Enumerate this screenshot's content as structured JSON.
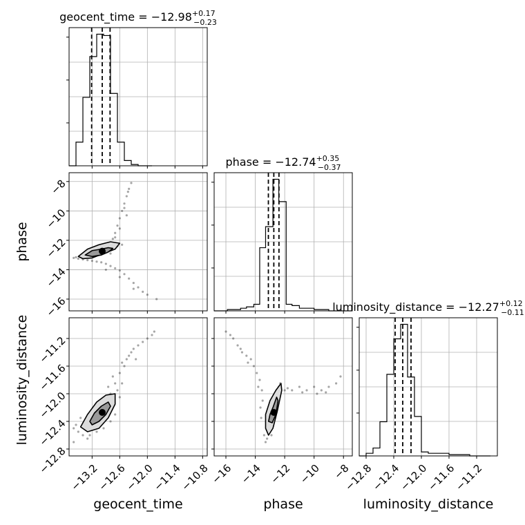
{
  "chart_data": {
    "type": "scatter",
    "layout": "corner-plot",
    "parameters": [
      "geocent_time",
      "phase",
      "luminosity_distance"
    ],
    "grid": true,
    "titles": {
      "geocent_time": {
        "prefix": "geocent_time = ",
        "median": "−12.98",
        "plus": "+0.17",
        "minus": "−0.23"
      },
      "phase": {
        "prefix": "phase = ",
        "median": "−12.74",
        "plus": "+0.35",
        "minus": "−0.37"
      },
      "luminosity_distance": {
        "prefix": "luminosity_distance = ",
        "median": "−12.27",
        "plus": "+0.12",
        "minus": "−0.11"
      }
    },
    "axes": {
      "geocent_time": {
        "label": "geocent_time",
        "range": [
          -13.7,
          -10.7
        ],
        "ticks": [
          -13.2,
          -12.6,
          -12.0,
          -11.4,
          -10.8
        ],
        "tick_labels": [
          "−13.2",
          "−12.6",
          "−12.0",
          "−11.4",
          "−10.8"
        ]
      },
      "phase": {
        "label": "phase",
        "range": [
          -16.8,
          -7.4
        ],
        "ticks": [
          -16,
          -14,
          -12,
          -10,
          -8
        ],
        "tick_labels": [
          "−16",
          "−14",
          "−12",
          "−10",
          "−8"
        ]
      },
      "luminosity_distance": {
        "label": "luminosity_distance",
        "range": [
          -12.9,
          -10.9
        ],
        "ticks": [
          -12.8,
          -12.4,
          -12.0,
          -11.6,
          -11.2
        ],
        "tick_labels": [
          "−12.8",
          "−12.4",
          "−12.0",
          "−11.6",
          "−11.2"
        ]
      }
    },
    "histograms": {
      "geocent_time": {
        "bin_edges": [
          -13.7,
          -13.55,
          -13.4,
          -13.25,
          -13.1,
          -12.95,
          -12.8,
          -12.65,
          -12.5,
          -12.35,
          -12.2,
          -12.05,
          -11.9
        ],
        "counts": [
          0,
          0.18,
          0.52,
          0.83,
          1.0,
          0.99,
          0.55,
          0.18,
          0.04,
          0.01,
          0,
          0
        ],
        "quantiles": [
          -13.21,
          -12.98,
          -12.81
        ]
      },
      "phase": {
        "bin_edges": [
          -16.8,
          -15.9,
          -15.0,
          -14.6,
          -14.1,
          -13.7,
          -13.3,
          -12.8,
          -12.4,
          -11.9,
          -11.5,
          -11.0,
          -10.0,
          -9.0,
          -8.0,
          -7.4
        ],
        "counts": [
          0,
          0.01,
          0.02,
          0.03,
          0.05,
          0.48,
          0.64,
          1.0,
          0.83,
          0.05,
          0.04,
          0.02,
          0.01,
          0,
          0
        ],
        "quantiles": [
          -13.11,
          -12.74,
          -12.39
        ]
      },
      "luminosity_distance": {
        "bin_edges": [
          -12.9,
          -12.8,
          -12.7,
          -12.6,
          -12.5,
          -12.4,
          -12.3,
          -12.2,
          -12.1,
          -12.0,
          -11.9,
          -11.6,
          -11.3,
          -11.0
        ],
        "counts": [
          0,
          0.02,
          0.06,
          0.26,
          0.62,
          0.89,
          1.0,
          0.6,
          0.3,
          0.03,
          0.02,
          0.01,
          0
        ],
        "quantiles": [
          -12.38,
          -12.27,
          -12.15
        ]
      }
    },
    "joint": {
      "geocent_time__phase": {
        "peak": [
          -12.98,
          -12.74
        ],
        "contours": [
          [
            [
              -13.35,
              -13.0
            ],
            [
              -13.2,
              -12.7
            ],
            [
              -13.0,
              -12.6
            ],
            [
              -12.85,
              -12.5
            ],
            [
              -12.75,
              -12.55
            ],
            [
              -12.85,
              -12.8
            ],
            [
              -13.0,
              -13.0
            ],
            [
              -13.2,
              -13.1
            ]
          ],
          [
            [
              -13.5,
              -13.1
            ],
            [
              -13.3,
              -12.6
            ],
            [
              -13.05,
              -12.3
            ],
            [
              -12.8,
              -12.1
            ],
            [
              -12.6,
              -12.2
            ],
            [
              -12.7,
              -12.6
            ],
            [
              -12.95,
              -12.9
            ],
            [
              -13.2,
              -13.2
            ],
            [
              -13.4,
              -13.25
            ]
          ]
        ],
        "samples": [
          [
            -13.55,
            -13.15
          ],
          [
            -13.45,
            -13.05
          ],
          [
            -13.4,
            -13.3
          ],
          [
            -13.3,
            -13.35
          ],
          [
            -13.2,
            -13.4
          ],
          [
            -13.1,
            -13.45
          ],
          [
            -13.0,
            -13.5
          ],
          [
            -12.9,
            -13.6
          ],
          [
            -12.8,
            -13.75
          ],
          [
            -12.7,
            -13.9
          ],
          [
            -12.6,
            -14.05
          ],
          [
            -12.5,
            -14.3
          ],
          [
            -12.4,
            -14.6
          ],
          [
            -12.3,
            -14.9
          ],
          [
            -12.2,
            -15.2
          ],
          [
            -12.1,
            -15.5
          ],
          [
            -12.0,
            -15.7
          ],
          [
            -11.8,
            -16.0
          ],
          [
            -12.75,
            -11.9
          ],
          [
            -12.7,
            -11.5
          ],
          [
            -12.65,
            -11.0
          ],
          [
            -12.6,
            -10.5
          ],
          [
            -12.55,
            -10.0
          ],
          [
            -12.5,
            -9.5
          ],
          [
            -12.45,
            -9.0
          ],
          [
            -12.4,
            -8.5
          ],
          [
            -12.35,
            -8.1
          ],
          [
            -12.45,
            -10.3
          ],
          [
            -12.7,
            -11.8
          ],
          [
            -12.6,
            -11.2
          ],
          [
            -13.35,
            -12.9
          ],
          [
            -13.25,
            -12.8
          ],
          [
            -13.15,
            -12.65
          ],
          [
            -13.05,
            -12.55
          ],
          [
            -12.95,
            -12.45
          ],
          [
            -12.85,
            -12.35
          ],
          [
            -12.75,
            -12.3
          ],
          [
            -13.6,
            -13.2
          ],
          [
            -13.5,
            -13.25
          ],
          [
            -12.65,
            -12.4
          ],
          [
            -12.55,
            -12.3
          ],
          [
            -12.9,
            -14.0
          ],
          [
            -12.6,
            -14.5
          ],
          [
            -12.3,
            -15.3
          ],
          [
            -12.5,
            -9.8
          ],
          [
            -12.42,
            -8.7
          ],
          [
            -12.8,
            -12.9
          ],
          [
            -13.0,
            -12.95
          ],
          [
            -13.1,
            -12.7
          ]
        ]
      },
      "geocent_time__luminosity_distance": {
        "peak": [
          -12.98,
          -12.27
        ],
        "contours": [
          [
            [
              -13.25,
              -12.4
            ],
            [
              -13.15,
              -12.28
            ],
            [
              -13.0,
              -12.18
            ],
            [
              -12.85,
              -12.12
            ],
            [
              -12.8,
              -12.18
            ],
            [
              -12.9,
              -12.3
            ],
            [
              -13.05,
              -12.4
            ],
            [
              -13.2,
              -12.45
            ]
          ],
          [
            [
              -13.45,
              -12.48
            ],
            [
              -13.3,
              -12.3
            ],
            [
              -13.1,
              -12.12
            ],
            [
              -12.9,
              -12.02
            ],
            [
              -12.7,
              -12.0
            ],
            [
              -12.7,
              -12.15
            ],
            [
              -12.85,
              -12.35
            ],
            [
              -13.05,
              -12.5
            ],
            [
              -13.3,
              -12.55
            ]
          ]
        ],
        "samples": [
          [
            -13.5,
            -12.55
          ],
          [
            -13.55,
            -12.45
          ],
          [
            -13.4,
            -12.6
          ],
          [
            -13.3,
            -12.65
          ],
          [
            -13.6,
            -12.7
          ],
          [
            -12.6,
            -12.05
          ],
          [
            -12.65,
            -11.95
          ],
          [
            -12.7,
            -11.85
          ],
          [
            -12.75,
            -11.75
          ],
          [
            -12.6,
            -11.7
          ],
          [
            -12.5,
            -11.6
          ],
          [
            -12.45,
            -11.5
          ],
          [
            -12.4,
            -11.45
          ],
          [
            -12.3,
            -11.35
          ],
          [
            -12.2,
            -11.3
          ],
          [
            -12.1,
            -11.25
          ],
          [
            -12.0,
            -11.2
          ],
          [
            -11.9,
            -11.15
          ],
          [
            -11.85,
            -11.1
          ],
          [
            -12.55,
            -11.55
          ],
          [
            -12.35,
            -11.4
          ],
          [
            -12.8,
            -12.0
          ],
          [
            -12.9,
            -12.05
          ],
          [
            -13.0,
            -12.1
          ],
          [
            -13.1,
            -12.2
          ],
          [
            -13.2,
            -12.3
          ],
          [
            -13.35,
            -12.4
          ],
          [
            -13.45,
            -12.35
          ],
          [
            -12.95,
            -12.5
          ],
          [
            -13.1,
            -12.55
          ],
          [
            -12.8,
            -12.4
          ],
          [
            -12.7,
            -12.3
          ],
          [
            -13.25,
            -12.6
          ],
          [
            -12.55,
            -11.85
          ],
          [
            -12.25,
            -11.5
          ],
          [
            -13.6,
            -12.5
          ],
          [
            -12.85,
            -11.9
          ]
        ]
      },
      "phase__luminosity_distance": {
        "peak": [
          -12.74,
          -12.27
        ],
        "contours": [
          [
            [
              -13.1,
              -12.4
            ],
            [
              -13.0,
              -12.3
            ],
            [
              -12.8,
              -12.2
            ],
            [
              -12.55,
              -12.05
            ],
            [
              -12.45,
              -12.1
            ],
            [
              -12.6,
              -12.3
            ],
            [
              -12.85,
              -12.42
            ]
          ],
          [
            [
              -13.3,
              -12.5
            ],
            [
              -13.3,
              -12.3
            ],
            [
              -13.0,
              -12.1
            ],
            [
              -12.6,
              -11.95
            ],
            [
              -12.25,
              -11.85
            ],
            [
              -12.2,
              -11.95
            ],
            [
              -12.5,
              -12.25
            ],
            [
              -12.8,
              -12.5
            ],
            [
              -13.1,
              -12.6
            ]
          ]
        ],
        "samples": [
          [
            -13.5,
            -12.1
          ],
          [
            -13.55,
            -11.95
          ],
          [
            -13.7,
            -11.8
          ],
          [
            -13.9,
            -11.7
          ],
          [
            -14.1,
            -11.6
          ],
          [
            -14.3,
            -11.5
          ],
          [
            -14.6,
            -11.45
          ],
          [
            -14.9,
            -11.4
          ],
          [
            -15.2,
            -11.3
          ],
          [
            -15.5,
            -11.2
          ],
          [
            -15.7,
            -11.15
          ],
          [
            -16.0,
            -11.1
          ],
          [
            -12.0,
            -11.95
          ],
          [
            -11.5,
            -11.95
          ],
          [
            -11.0,
            -11.9
          ],
          [
            -10.5,
            -11.95
          ],
          [
            -10.0,
            -11.9
          ],
          [
            -9.5,
            -11.95
          ],
          [
            -9.0,
            -11.9
          ],
          [
            -8.5,
            -11.85
          ],
          [
            -8.2,
            -11.75
          ],
          [
            -11.8,
            -11.92
          ],
          [
            -10.8,
            -11.98
          ],
          [
            -9.8,
            -12.0
          ],
          [
            -9.2,
            -11.98
          ],
          [
            -13.4,
            -12.6
          ],
          [
            -13.3,
            -12.7
          ],
          [
            -13.2,
            -12.65
          ],
          [
            -13.0,
            -12.55
          ],
          [
            -12.9,
            -12.6
          ],
          [
            -13.6,
            -12.35
          ],
          [
            -13.65,
            -12.2
          ],
          [
            -12.4,
            -11.9
          ],
          [
            -12.3,
            -11.85
          ],
          [
            -14.5,
            -11.55
          ],
          [
            -15.0,
            -11.35
          ],
          [
            -13.8,
            -11.9
          ]
        ]
      }
    }
  }
}
